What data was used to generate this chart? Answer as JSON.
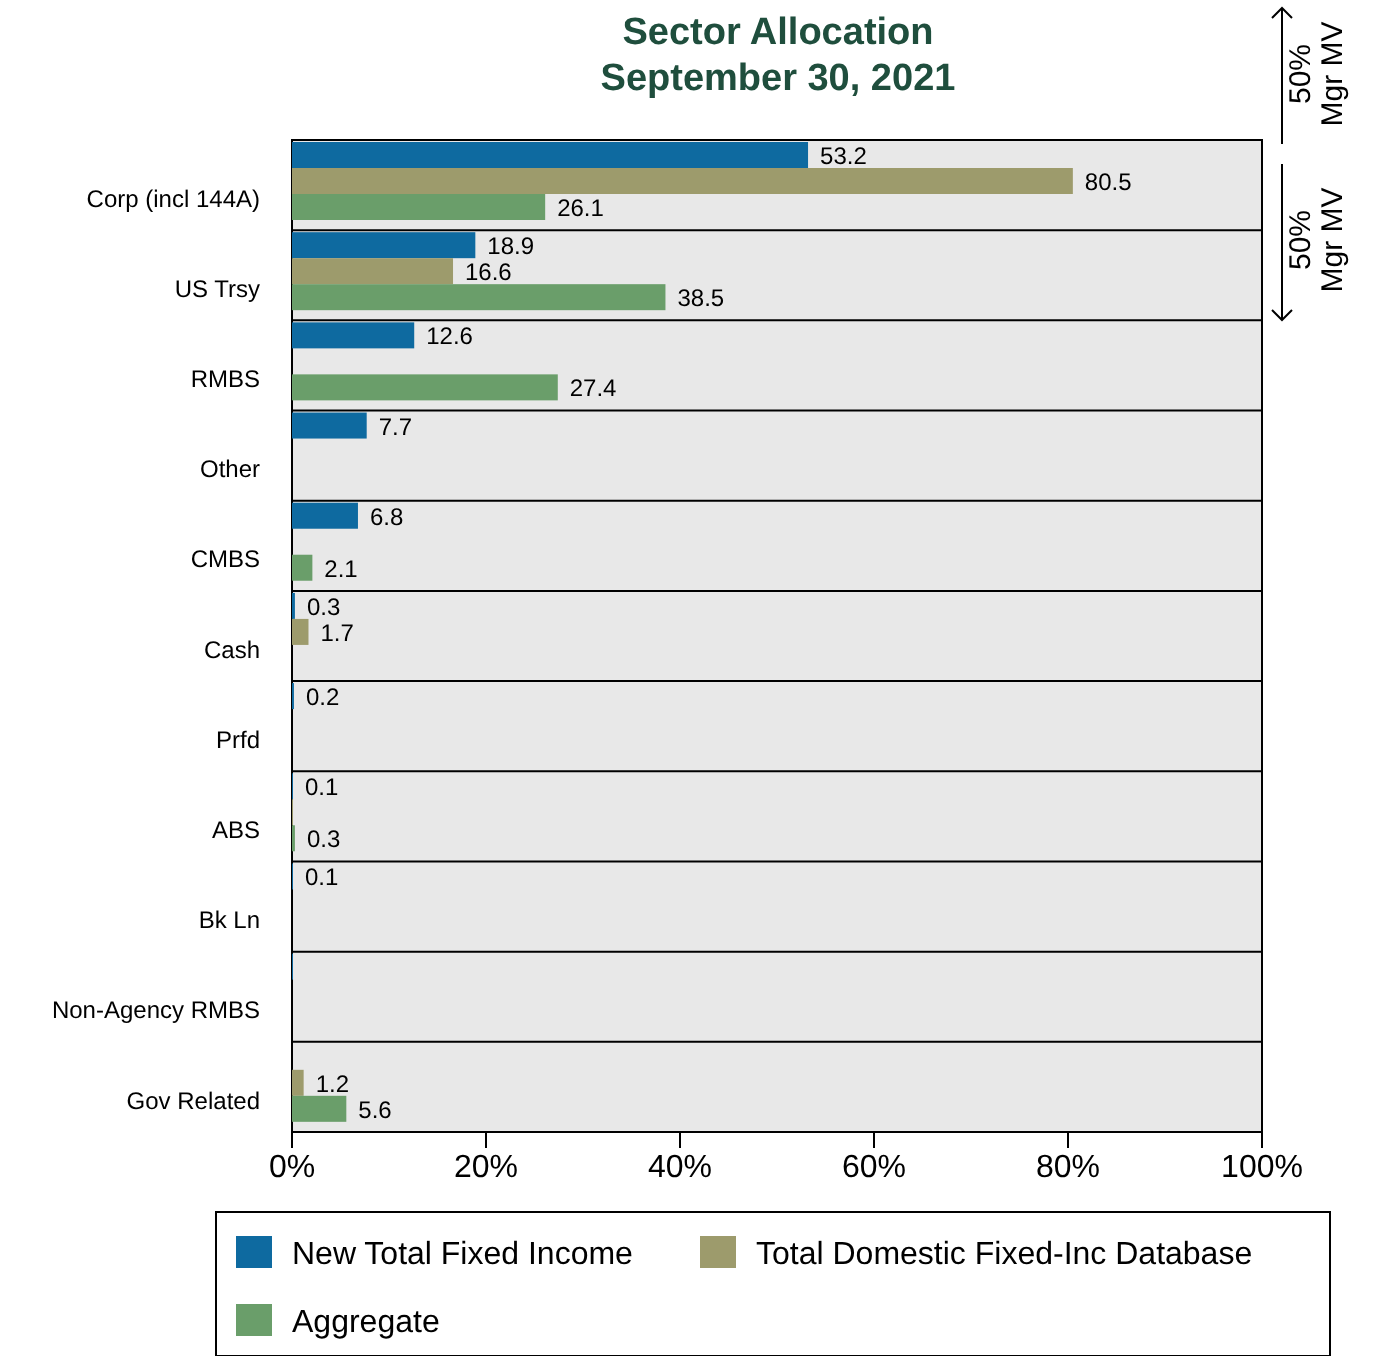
{
  "chart_data": {
    "type": "bar",
    "orientation": "horizontal",
    "title": "Sector Allocation\nSeptember 30, 2021",
    "categories": [
      "Corp (incl 144A)",
      "US Trsy",
      "RMBS",
      "Other",
      "CMBS",
      "Cash",
      "Prfd",
      "ABS",
      "Bk Ln",
      "Non-Agency RMBS",
      "Gov Related"
    ],
    "series": [
      {
        "name": "New Total Fixed Income",
        "color": "#0e6aa0",
        "values": [
          53.2,
          18.9,
          12.6,
          7.7,
          6.8,
          0.3,
          0.2,
          0.1,
          0.1,
          0.1,
          null
        ],
        "value_labels": [
          "53.2",
          "18.9",
          "12.6",
          "7.7",
          "6.8",
          "0.3",
          "0.2",
          "0.1",
          "0.1",
          null,
          null
        ]
      },
      {
        "name": "Total Domestic Fixed-Inc Database",
        "color": "#9d9b6c",
        "values": [
          80.5,
          16.6,
          null,
          null,
          null,
          1.7,
          null,
          0.1,
          null,
          null,
          1.2
        ],
        "value_labels": [
          "80.5",
          "16.6",
          null,
          null,
          null,
          "1.7",
          null,
          null,
          null,
          null,
          "1.2"
        ]
      },
      {
        "name": "Aggregate",
        "color": "#6a9e6a",
        "values": [
          26.1,
          38.5,
          27.4,
          null,
          2.1,
          null,
          null,
          0.3,
          null,
          null,
          5.6
        ],
        "value_labels": [
          "26.1",
          "38.5",
          "27.4",
          null,
          "2.1",
          null,
          null,
          "0.3",
          null,
          null,
          "5.6"
        ]
      }
    ],
    "xlim": [
      0,
      100
    ],
    "xticks": [
      {
        "value": 0,
        "label": "0%"
      },
      {
        "value": 20,
        "label": "20%"
      },
      {
        "value": 40,
        "label": "40%"
      },
      {
        "value": 60,
        "label": "60%"
      },
      {
        "value": 80,
        "label": "80%"
      },
      {
        "value": 100,
        "label": "100%"
      }
    ],
    "grid": "y",
    "legend": "bottom",
    "annotations": [
      "50%\nMgr MV",
      "50%\nMgr MV"
    ]
  }
}
